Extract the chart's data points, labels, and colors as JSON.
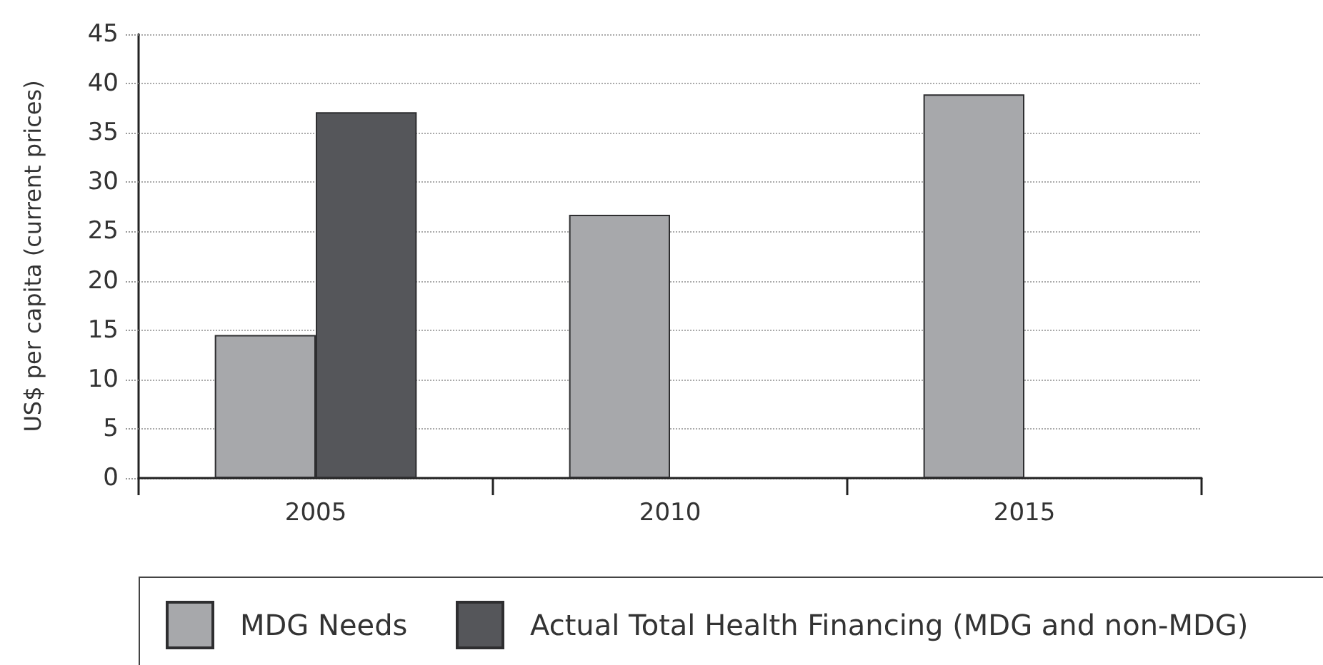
{
  "chart_data": {
    "type": "bar",
    "ylabel": "US$ per capita (current prices)",
    "categories": [
      "2005",
      "2010",
      "2015"
    ],
    "series": [
      {
        "name": "MDG Needs",
        "color": "#a7a8ab",
        "values": [
          14.5,
          26.7,
          38.9
        ]
      },
      {
        "name": "Actual Total Health Financing (MDG and non-MDG)",
        "color": "#55565a",
        "values": [
          37.1,
          null,
          null
        ]
      }
    ],
    "ylim": [
      0,
      45
    ],
    "yticks": [
      0,
      5,
      10,
      15,
      20,
      25,
      30,
      35,
      40,
      45
    ],
    "grid": "y",
    "legend": "bottom"
  }
}
